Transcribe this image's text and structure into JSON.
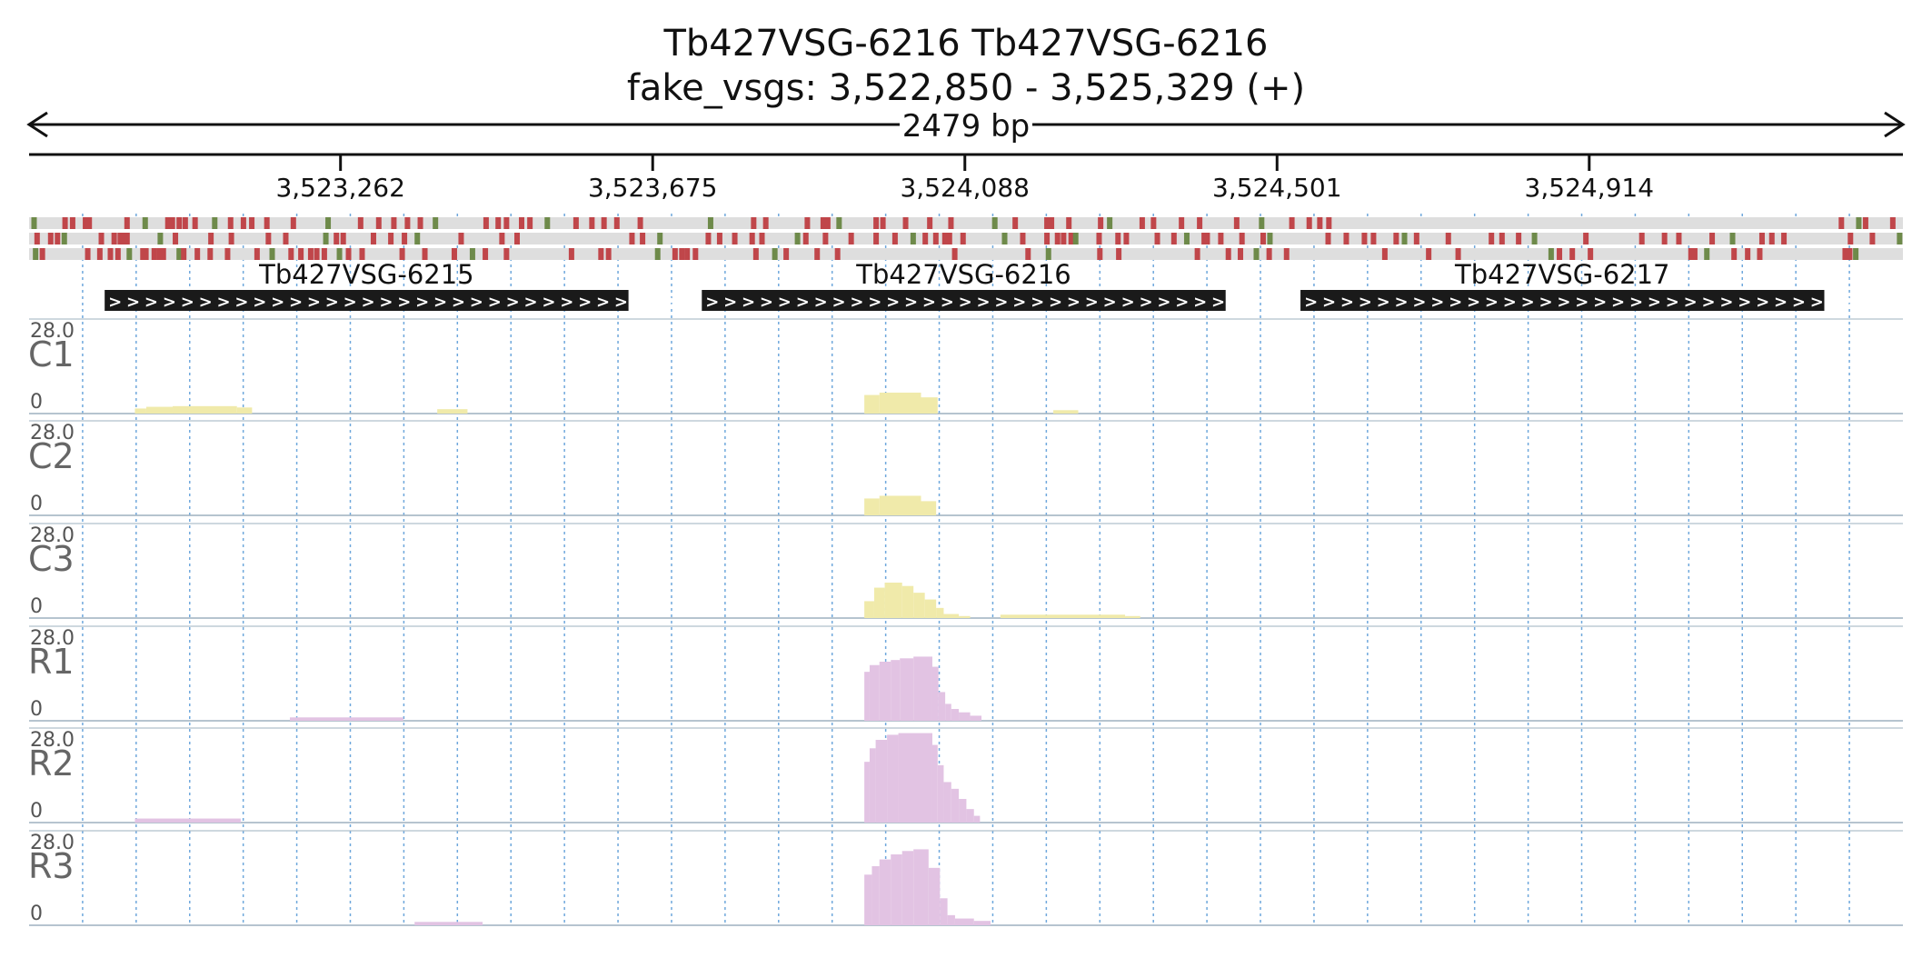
{
  "header": {
    "title": "Tb427VSG-6216  Tb427VSG-6216",
    "locus": "fake_vsgs: 3,522,850 - 3,525,329 (+)",
    "span_label": "2479 bp"
  },
  "chart_data": {
    "type": "area",
    "genome_range": [
      3522850,
      3525329
    ],
    "ruler_ticks": [
      {
        "pos": 3523262,
        "label": "3,523,262"
      },
      {
        "pos": 3523675,
        "label": "3,523,675"
      },
      {
        "pos": 3524088,
        "label": "3,524,088"
      },
      {
        "pos": 3524501,
        "label": "3,524,501"
      },
      {
        "pos": 3524914,
        "label": "3,524,914"
      }
    ],
    "genes": [
      {
        "name": "Tb427VSG-6215",
        "start": 3522950,
        "end": 3523643,
        "strand": "+"
      },
      {
        "name": "Tb427VSG-6216",
        "start": 3523740,
        "end": 3524433,
        "strand": "+"
      },
      {
        "name": "Tb427VSG-6217",
        "start": 3524532,
        "end": 3525225,
        "strand": "+"
      }
    ],
    "frame_colors": {
      "stop": "#c0464a",
      "start": "#6e8a4a",
      "band": "#dedede"
    },
    "frames": [
      [
        3522853,
        3522894,
        3522904,
        3522921,
        3522926,
        3522976,
        3523000,
        3523030,
        3523036,
        3523045,
        3523053,
        3523066,
        3523092,
        3523113,
        3523130,
        3523141,
        3523161,
        3523196,
        3523242,
        3523285,
        3523309,
        3523329,
        3523347,
        3523364,
        3523384,
        3523451,
        3523467,
        3523478,
        3523498,
        3523509,
        3523532,
        3523570,
        3523591,
        3523607,
        3523624,
        3523655,
        3523748,
        3523805,
        3523821,
        3523876,
        3523897,
        3523903,
        3523918,
        3523967,
        3523976,
        3524006,
        3524038,
        3524066,
        3524124,
        3524151,
        3524193,
        3524199,
        3524222,
        3524264,
        3524276,
        3524319,
        3524334,
        3524371,
        3524395,
        3524444,
        3524477,
        3524517,
        3524540,
        3524554,
        3524566,
        3525244,
        3525267,
        3525276,
        3525312
      ],
      [
        3522857,
        3522875,
        3522884,
        3522893,
        3522942,
        3522959,
        3522967,
        3522972,
        3522976,
        3523020,
        3523040,
        3523087,
        3523114,
        3523163,
        3523186,
        3523239,
        3523253,
        3523262,
        3523302,
        3523325,
        3523343,
        3523360,
        3523418,
        3523472,
        3523492,
        3523644,
        3523658,
        3523681,
        3523745,
        3523760,
        3523780,
        3523803,
        3523816,
        3523863,
        3523874,
        3523900,
        3523934,
        3523967,
        3523992,
        3524016,
        3524032,
        3524046,
        3524058,
        3524064,
        3524082,
        3524137,
        3524161,
        3524193,
        3524207,
        3524215,
        3524225,
        3524231,
        3524262,
        3524287,
        3524298,
        3524339,
        3524361,
        3524378,
        3524401,
        3524405,
        3524423,
        3524451,
        3524479,
        3524488,
        3524565,
        3524589,
        3524613,
        3524625,
        3524655,
        3524666,
        3524682,
        3524724,
        3524781,
        3524795,
        3524817,
        3524838,
        3524906,
        3524980,
        3525010,
        3525029,
        3525073,
        3525100,
        3525139,
        3525152,
        3525168,
        3525256,
        3525285,
        3525321
      ],
      [
        3522855,
        3522864,
        3522924,
        3522940,
        3522954,
        3522964,
        3522979,
        3522997,
        3523001,
        3523012,
        3523019,
        3523024,
        3523045,
        3523051,
        3523069,
        3523086,
        3523109,
        3523148,
        3523168,
        3523193,
        3523206,
        3523219,
        3523227,
        3523237,
        3523257,
        3523269,
        3523287,
        3523340,
        3523370,
        3523409,
        3523433,
        3523450,
        3523478,
        3523564,
        3523603,
        3523613,
        3523678,
        3523701,
        3523710,
        3523717,
        3523728,
        3523808,
        3523833,
        3523848,
        3523889,
        3523916,
        3524071,
        3524168,
        3524195,
        3524263,
        3524288,
        3524392,
        3524433,
        3524449,
        3524470,
        3524487,
        3524510,
        3524640,
        3524698,
        3524737,
        3524860,
        3524871,
        3524888,
        3524912,
        3525045,
        3525050,
        3525066,
        3525102,
        3525120,
        3525136,
        3525249,
        3525255,
        3525263
      ]
    ],
    "ylim": [
      0,
      28.0
    ],
    "tracks": [
      {
        "name": "C1",
        "color": "#f0eaaa",
        "max_label": "28.0",
        "min_label": "0",
        "segments": [
          [
            3522990,
            3523005,
            1.5
          ],
          [
            3523005,
            3523040,
            2.0
          ],
          [
            3523040,
            3523125,
            2.2
          ],
          [
            3523125,
            3523145,
            1.8
          ],
          [
            3523390,
            3523430,
            1.3
          ],
          [
            3523955,
            3523975,
            5.5
          ],
          [
            3523975,
            3524030,
            6.2
          ],
          [
            3524030,
            3524052,
            4.8
          ],
          [
            3524205,
            3524238,
            1.0
          ]
        ]
      },
      {
        "name": "C2",
        "color": "#f0eaaa",
        "max_label": "28.0",
        "min_label": "0",
        "segments": [
          [
            3523955,
            3523975,
            5.0
          ],
          [
            3523975,
            3524030,
            5.8
          ],
          [
            3524030,
            3524050,
            4.2
          ]
        ]
      },
      {
        "name": "C3",
        "color": "#f0eaaa",
        "max_label": "28.0",
        "min_label": "0",
        "segments": [
          [
            3523955,
            3523968,
            5.0
          ],
          [
            3523968,
            3523982,
            9.0
          ],
          [
            3523982,
            3524005,
            10.5
          ],
          [
            3524005,
            3524020,
            9.5
          ],
          [
            3524020,
            3524035,
            7.5
          ],
          [
            3524035,
            3524050,
            5.5
          ],
          [
            3524050,
            3524060,
            3.0
          ],
          [
            3524060,
            3524080,
            1.2
          ],
          [
            3524080,
            3524095,
            0.6
          ],
          [
            3524135,
            3524300,
            1.0
          ],
          [
            3524300,
            3524320,
            0.6
          ]
        ]
      },
      {
        "name": "R1",
        "color": "#e2c3e3",
        "max_label": "28.0",
        "min_label": "0",
        "segments": [
          [
            3523195,
            3523345,
            1.0
          ],
          [
            3523955,
            3523962,
            14.5
          ],
          [
            3523962,
            3523975,
            16.5
          ],
          [
            3523975,
            3523990,
            17.5
          ],
          [
            3523990,
            3524002,
            18.0
          ],
          [
            3524002,
            3524020,
            18.5
          ],
          [
            3524020,
            3524045,
            19.0
          ],
          [
            3524045,
            3524053,
            16.0
          ],
          [
            3524053,
            3524062,
            8.5
          ],
          [
            3524062,
            3524070,
            5.0
          ],
          [
            3524070,
            3524080,
            3.5
          ],
          [
            3524080,
            3524095,
            2.5
          ],
          [
            3524095,
            3524110,
            1.5
          ]
        ]
      },
      {
        "name": "R2",
        "color": "#e2c3e3",
        "max_label": "28.0",
        "min_label": "0",
        "segments": [
          [
            3522990,
            3523130,
            1.2
          ],
          [
            3523955,
            3523962,
            18.0
          ],
          [
            3523962,
            3523970,
            22.0
          ],
          [
            3523970,
            3523985,
            24.5
          ],
          [
            3523985,
            3524000,
            26.0
          ],
          [
            3524000,
            3524045,
            26.5
          ],
          [
            3524045,
            3524052,
            23.0
          ],
          [
            3524052,
            3524060,
            17.0
          ],
          [
            3524060,
            3524070,
            12.0
          ],
          [
            3524070,
            3524080,
            10.0
          ],
          [
            3524080,
            3524090,
            7.0
          ],
          [
            3524090,
            3524100,
            4.0
          ],
          [
            3524100,
            3524108,
            2.0
          ]
        ]
      },
      {
        "name": "R3",
        "color": "#e2c3e3",
        "max_label": "28.0",
        "min_label": "0",
        "segments": [
          [
            3523360,
            3523450,
            1.0
          ],
          [
            3523955,
            3523965,
            15.0
          ],
          [
            3523965,
            3523975,
            17.5
          ],
          [
            3523975,
            3523990,
            19.5
          ],
          [
            3523990,
            3524005,
            21.0
          ],
          [
            3524005,
            3524020,
            22.0
          ],
          [
            3524020,
            3524040,
            22.5
          ],
          [
            3524040,
            3524055,
            17.0
          ],
          [
            3524055,
            3524065,
            8.0
          ],
          [
            3524065,
            3524075,
            3.0
          ],
          [
            3524075,
            3524100,
            2.0
          ],
          [
            3524100,
            3524122,
            1.3
          ]
        ]
      }
    ]
  }
}
